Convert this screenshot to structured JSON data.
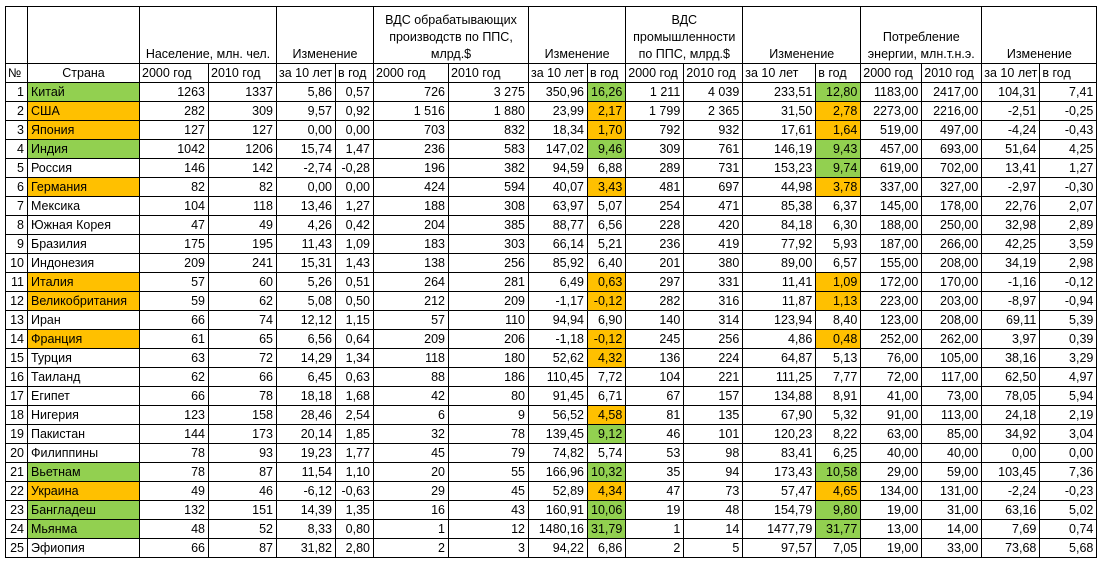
{
  "colors": {
    "green": "#92d050",
    "orange": "#ffc000"
  },
  "header": {
    "num": "№",
    "country": "Страна",
    "population": "Население, млн. чел.",
    "change": "Изменение",
    "manufacturing_l1": "ВДС обрабатывающих",
    "manufacturing_l2": "производств по ППС,",
    "manufacturing_l3": "млрд.$",
    "industry_l1": "ВДС",
    "industry_l2": "промышленности",
    "industry_l3": "по ППС, млрд.$",
    "energy_l1": "Потребление",
    "energy_l2": "энергии, млн.т.н.э.",
    "y2000": "2000 год",
    "y2010": "2010 год",
    "per10": "за 10 лет",
    "perYear": "в год"
  },
  "rows": [
    {
      "n": "1",
      "country": "Китай",
      "cc": "g",
      "p00": "1263",
      "p10": "1337",
      "pc": "5,86",
      "py": "0,57",
      "m00": "726",
      "m10": "3 275",
      "mc": "350,96",
      "my": "16,26",
      "myc": "g",
      "i00": "1 211",
      "i10": "4 039",
      "ic": "233,51",
      "iy": "12,80",
      "iyc": "g",
      "e00": "1183,00",
      "e10": "2417,00",
      "ec": "104,31",
      "ey": "7,41"
    },
    {
      "n": "2",
      "country": "США",
      "cc": "o",
      "p00": "282",
      "p10": "309",
      "pc": "9,57",
      "py": "0,92",
      "m00": "1 516",
      "m10": "1 880",
      "mc": "23,99",
      "my": "2,17",
      "myc": "o",
      "i00": "1 799",
      "i10": "2 365",
      "ic": "31,50",
      "iy": "2,78",
      "iyc": "o",
      "e00": "2273,00",
      "e10": "2216,00",
      "ec": "-2,51",
      "ey": "-0,25"
    },
    {
      "n": "3",
      "country": "Япония",
      "cc": "o",
      "p00": "127",
      "p10": "127",
      "pc": "0,00",
      "py": "0,00",
      "m00": "703",
      "m10": "832",
      "mc": "18,34",
      "my": "1,70",
      "myc": "o",
      "i00": "792",
      "i10": "932",
      "ic": "17,61",
      "iy": "1,64",
      "iyc": "o",
      "e00": "519,00",
      "e10": "497,00",
      "ec": "-4,24",
      "ey": "-0,43"
    },
    {
      "n": "4",
      "country": "Индия",
      "cc": "g",
      "p00": "1042",
      "p10": "1206",
      "pc": "15,74",
      "py": "1,47",
      "m00": "236",
      "m10": "583",
      "mc": "147,02",
      "my": "9,46",
      "myc": "g",
      "i00": "309",
      "i10": "761",
      "ic": "146,19",
      "iy": "9,43",
      "iyc": "g",
      "e00": "457,00",
      "e10": "693,00",
      "ec": "51,64",
      "ey": "4,25"
    },
    {
      "n": "5",
      "country": "Россия",
      "cc": "",
      "p00": "146",
      "p10": "142",
      "pc": "-2,74",
      "py": "-0,28",
      "m00": "196",
      "m10": "382",
      "mc": "94,59",
      "my": "6,88",
      "myc": "",
      "i00": "289",
      "i10": "731",
      "ic": "153,23",
      "iy": "9,74",
      "iyc": "g",
      "e00": "619,00",
      "e10": "702,00",
      "ec": "13,41",
      "ey": "1,27"
    },
    {
      "n": "6",
      "country": "Германия",
      "cc": "o",
      "p00": "82",
      "p10": "82",
      "pc": "0,00",
      "py": "0,00",
      "m00": "424",
      "m10": "594",
      "mc": "40,07",
      "my": "3,43",
      "myc": "o",
      "i00": "481",
      "i10": "697",
      "ic": "44,98",
      "iy": "3,78",
      "iyc": "o",
      "e00": "337,00",
      "e10": "327,00",
      "ec": "-2,97",
      "ey": "-0,30"
    },
    {
      "n": "7",
      "country": "Мексика",
      "cc": "",
      "p00": "104",
      "p10": "118",
      "pc": "13,46",
      "py": "1,27",
      "m00": "188",
      "m10": "308",
      "mc": "63,97",
      "my": "5,07",
      "myc": "",
      "i00": "254",
      "i10": "471",
      "ic": "85,38",
      "iy": "6,37",
      "iyc": "",
      "e00": "145,00",
      "e10": "178,00",
      "ec": "22,76",
      "ey": "2,07"
    },
    {
      "n": "8",
      "country": "Южная Корея",
      "cc": "",
      "p00": "47",
      "p10": "49",
      "pc": "4,26",
      "py": "0,42",
      "m00": "204",
      "m10": "385",
      "mc": "88,77",
      "my": "6,56",
      "myc": "",
      "i00": "228",
      "i10": "420",
      "ic": "84,18",
      "iy": "6,30",
      "iyc": "",
      "e00": "188,00",
      "e10": "250,00",
      "ec": "32,98",
      "ey": "2,89"
    },
    {
      "n": "9",
      "country": "Бразилия",
      "cc": "",
      "p00": "175",
      "p10": "195",
      "pc": "11,43",
      "py": "1,09",
      "m00": "183",
      "m10": "303",
      "mc": "66,14",
      "my": "5,21",
      "myc": "",
      "i00": "236",
      "i10": "419",
      "ic": "77,92",
      "iy": "5,93",
      "iyc": "",
      "e00": "187,00",
      "e10": "266,00",
      "ec": "42,25",
      "ey": "3,59"
    },
    {
      "n": "10",
      "country": "Индонезия",
      "cc": "",
      "p00": "209",
      "p10": "241",
      "pc": "15,31",
      "py": "1,43",
      "m00": "138",
      "m10": "256",
      "mc": "85,92",
      "my": "6,40",
      "myc": "",
      "i00": "201",
      "i10": "380",
      "ic": "89,00",
      "iy": "6,57",
      "iyc": "",
      "e00": "155,00",
      "e10": "208,00",
      "ec": "34,19",
      "ey": "2,98"
    },
    {
      "n": "11",
      "country": "Италия",
      "cc": "o",
      "p00": "57",
      "p10": "60",
      "pc": "5,26",
      "py": "0,51",
      "m00": "264",
      "m10": "281",
      "mc": "6,49",
      "my": "0,63",
      "myc": "o",
      "i00": "297",
      "i10": "331",
      "ic": "11,41",
      "iy": "1,09",
      "iyc": "o",
      "e00": "172,00",
      "e10": "170,00",
      "ec": "-1,16",
      "ey": "-0,12"
    },
    {
      "n": "12",
      "country": "Великобритания",
      "cc": "o",
      "p00": "59",
      "p10": "62",
      "pc": "5,08",
      "py": "0,50",
      "m00": "212",
      "m10": "209",
      "mc": "-1,17",
      "my": "-0,12",
      "myc": "o",
      "i00": "282",
      "i10": "316",
      "ic": "11,87",
      "iy": "1,13",
      "iyc": "o",
      "e00": "223,00",
      "e10": "203,00",
      "ec": "-8,97",
      "ey": "-0,94"
    },
    {
      "n": "13",
      "country": "Иран",
      "cc": "",
      "p00": "66",
      "p10": "74",
      "pc": "12,12",
      "py": "1,15",
      "m00": "57",
      "m10": "110",
      "mc": "94,94",
      "my": "6,90",
      "myc": "",
      "i00": "140",
      "i10": "314",
      "ic": "123,94",
      "iy": "8,40",
      "iyc": "",
      "e00": "123,00",
      "e10": "208,00",
      "ec": "69,11",
      "ey": "5,39"
    },
    {
      "n": "14",
      "country": "Франция",
      "cc": "o",
      "p00": "61",
      "p10": "65",
      "pc": "6,56",
      "py": "0,64",
      "m00": "209",
      "m10": "206",
      "mc": "-1,18",
      "my": "-0,12",
      "myc": "o",
      "i00": "245",
      "i10": "256",
      "ic": "4,86",
      "iy": "0,48",
      "iyc": "o",
      "e00": "252,00",
      "e10": "262,00",
      "ec": "3,97",
      "ey": "0,39"
    },
    {
      "n": "15",
      "country": "Турция",
      "cc": "",
      "p00": "63",
      "p10": "72",
      "pc": "14,29",
      "py": "1,34",
      "m00": "118",
      "m10": "180",
      "mc": "52,62",
      "my": "4,32",
      "myc": "o",
      "i00": "136",
      "i10": "224",
      "ic": "64,87",
      "iy": "5,13",
      "iyc": "",
      "e00": "76,00",
      "e10": "105,00",
      "ec": "38,16",
      "ey": "3,29"
    },
    {
      "n": "16",
      "country": "Таиланд",
      "cc": "",
      "p00": "62",
      "p10": "66",
      "pc": "6,45",
      "py": "0,63",
      "m00": "88",
      "m10": "186",
      "mc": "110,45",
      "my": "7,72",
      "myc": "",
      "i00": "104",
      "i10": "221",
      "ic": "111,25",
      "iy": "7,77",
      "iyc": "",
      "e00": "72,00",
      "e10": "117,00",
      "ec": "62,50",
      "ey": "4,97"
    },
    {
      "n": "17",
      "country": "Египет",
      "cc": "",
      "p00": "66",
      "p10": "78",
      "pc": "18,18",
      "py": "1,68",
      "m00": "42",
      "m10": "80",
      "mc": "91,45",
      "my": "6,71",
      "myc": "",
      "i00": "67",
      "i10": "157",
      "ic": "134,88",
      "iy": "8,91",
      "iyc": "",
      "e00": "41,00",
      "e10": "73,00",
      "ec": "78,05",
      "ey": "5,94"
    },
    {
      "n": "18",
      "country": "Нигерия",
      "cc": "",
      "p00": "123",
      "p10": "158",
      "pc": "28,46",
      "py": "2,54",
      "m00": "6",
      "m10": "9",
      "mc": "56,52",
      "my": "4,58",
      "myc": "o",
      "i00": "81",
      "i10": "135",
      "ic": "67,90",
      "iy": "5,32",
      "iyc": "",
      "e00": "91,00",
      "e10": "113,00",
      "ec": "24,18",
      "ey": "2,19"
    },
    {
      "n": "19",
      "country": "Пакистан",
      "cc": "",
      "p00": "144",
      "p10": "173",
      "pc": "20,14",
      "py": "1,85",
      "m00": "32",
      "m10": "78",
      "mc": "139,45",
      "my": "9,12",
      "myc": "g",
      "i00": "46",
      "i10": "101",
      "ic": "120,23",
      "iy": "8,22",
      "iyc": "",
      "e00": "63,00",
      "e10": "85,00",
      "ec": "34,92",
      "ey": "3,04"
    },
    {
      "n": "20",
      "country": "Филиппины",
      "cc": "",
      "p00": "78",
      "p10": "93",
      "pc": "19,23",
      "py": "1,77",
      "m00": "45",
      "m10": "79",
      "mc": "74,82",
      "my": "5,74",
      "myc": "",
      "i00": "53",
      "i10": "98",
      "ic": "83,41",
      "iy": "6,25",
      "iyc": "",
      "e00": "40,00",
      "e10": "40,00",
      "ec": "0,00",
      "ey": "0,00"
    },
    {
      "n": "21",
      "country": "Вьетнам",
      "cc": "g",
      "p00": "78",
      "p10": "87",
      "pc": "11,54",
      "py": "1,10",
      "m00": "20",
      "m10": "55",
      "mc": "166,96",
      "my": "10,32",
      "myc": "g",
      "i00": "35",
      "i10": "94",
      "ic": "173,43",
      "iy": "10,58",
      "iyc": "g",
      "e00": "29,00",
      "e10": "59,00",
      "ec": "103,45",
      "ey": "7,36"
    },
    {
      "n": "22",
      "country": "Украина",
      "cc": "o",
      "p00": "49",
      "p10": "46",
      "pc": "-6,12",
      "py": "-0,63",
      "m00": "29",
      "m10": "45",
      "mc": "52,89",
      "my": "4,34",
      "myc": "o",
      "i00": "47",
      "i10": "73",
      "ic": "57,47",
      "iy": "4,65",
      "iyc": "o",
      "e00": "134,00",
      "e10": "131,00",
      "ec": "-2,24",
      "ey": "-0,23"
    },
    {
      "n": "23",
      "country": "Бангладеш",
      "cc": "g",
      "p00": "132",
      "p10": "151",
      "pc": "14,39",
      "py": "1,35",
      "m00": "16",
      "m10": "43",
      "mc": "160,91",
      "my": "10,06",
      "myc": "g",
      "i00": "19",
      "i10": "48",
      "ic": "154,79",
      "iy": "9,80",
      "iyc": "g",
      "e00": "19,00",
      "e10": "31,00",
      "ec": "63,16",
      "ey": "5,02"
    },
    {
      "n": "24",
      "country": "Мьянма",
      "cc": "g",
      "p00": "48",
      "p10": "52",
      "pc": "8,33",
      "py": "0,80",
      "m00": "1",
      "m10": "12",
      "mc": "1480,16",
      "my": "31,79",
      "myc": "g",
      "i00": "1",
      "i10": "14",
      "ic": "1477,79",
      "iy": "31,77",
      "iyc": "g",
      "e00": "13,00",
      "e10": "14,00",
      "ec": "7,69",
      "ey": "0,74"
    },
    {
      "n": "25",
      "country": "Эфиопия",
      "cc": "",
      "p00": "66",
      "p10": "87",
      "pc": "31,82",
      "py": "2,80",
      "m00": "2",
      "m10": "3",
      "mc": "94,22",
      "my": "6,86",
      "myc": "",
      "i00": "2",
      "i10": "5",
      "ic": "97,57",
      "iy": "7,05",
      "iyc": "",
      "e00": "19,00",
      "e10": "33,00",
      "ec": "73,68",
      "ey": "5,68"
    }
  ]
}
